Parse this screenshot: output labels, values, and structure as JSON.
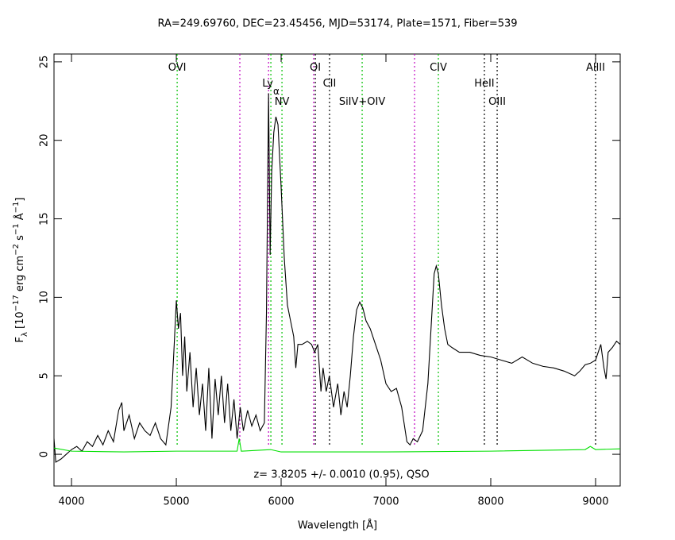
{
  "chart_data": {
    "type": "line",
    "title": "RA=249.69760, DEC=23.45456, MJD=53174, Plate=1571, Fiber=539",
    "xlabel": "Wavelength [Å]",
    "ylabel": [
      "F",
      "λ",
      " [10",
      "−17",
      " erg cm",
      "−2",
      " s",
      "−1",
      " Å",
      "−1",
      "]"
    ],
    "annotation": "z= 3.8205 +/- 0.0010 (0.95), QSO",
    "xlim": [
      3833,
      9235
    ],
    "ylim": [
      -2.02,
      25.5
    ],
    "xticks": [
      4000,
      5000,
      6000,
      7000,
      8000,
      9000
    ],
    "yticks": [
      0,
      5,
      10,
      15,
      20,
      25
    ],
    "series": [
      {
        "color": "#000000",
        "x": [
          3833,
          3850,
          3900,
          3950,
          4000,
          4050,
          4100,
          4150,
          4200,
          4250,
          4300,
          4350,
          4400,
          4450,
          4480,
          4500,
          4550,
          4600,
          4650,
          4700,
          4750,
          4800,
          4850,
          4900,
          4950,
          4980,
          5000,
          5020,
          5040,
          5060,
          5080,
          5100,
          5130,
          5160,
          5190,
          5220,
          5250,
          5280,
          5310,
          5340,
          5370,
          5400,
          5430,
          5460,
          5490,
          5520,
          5550,
          5580,
          5610,
          5640,
          5680,
          5720,
          5760,
          5800,
          5840,
          5860,
          5880,
          5895,
          5910,
          5930,
          5950,
          5970,
          6000,
          6030,
          6060,
          6090,
          6120,
          6140,
          6160,
          6200,
          6250,
          6290,
          6320,
          6350,
          6380,
          6400,
          6430,
          6460,
          6500,
          6540,
          6570,
          6600,
          6630,
          6660,
          6690,
          6720,
          6750,
          6780,
          6810,
          6850,
          6900,
          6950,
          7000,
          7050,
          7100,
          7150,
          7200,
          7230,
          7260,
          7300,
          7350,
          7400,
          7430,
          7460,
          7480,
          7500,
          7530,
          7560,
          7590,
          7630,
          7700,
          7800,
          7900,
          8000,
          8100,
          8200,
          8300,
          8400,
          8500,
          8600,
          8700,
          8800,
          8850,
          8900,
          8950,
          9000,
          9050,
          9080,
          9100,
          9120,
          9160,
          9200,
          9235
        ],
        "values": [
          1.0,
          -0.5,
          -0.3,
          0,
          0.3,
          0.5,
          0.2,
          0.8,
          0.5,
          1.2,
          0.6,
          1.5,
          0.8,
          2.8,
          3.3,
          1.5,
          2.5,
          1.0,
          2.0,
          1.5,
          1.2,
          2.0,
          1.0,
          0.6,
          3.0,
          7.0,
          9.8,
          8.0,
          9.0,
          5.0,
          7.5,
          4.0,
          6.5,
          3.0,
          5.5,
          2.5,
          4.5,
          1.5,
          5.5,
          1.0,
          4.8,
          2.5,
          5.0,
          2.0,
          4.5,
          1.5,
          3.5,
          1.0,
          3.0,
          1.5,
          2.8,
          1.8,
          2.5,
          1.5,
          2.0,
          9.0,
          23.0,
          12.7,
          18,
          20.5,
          21.5,
          21.0,
          17,
          12.5,
          9.5,
          8.5,
          7.5,
          5.5,
          7.0,
          7.0,
          7.2,
          7.0,
          6.5,
          7.0,
          4.0,
          5.5,
          4.0,
          5.0,
          3.0,
          4.5,
          2.5,
          4.0,
          3.0,
          5.0,
          7.5,
          9.2,
          9.7,
          9.3,
          8.5,
          8.0,
          7.0,
          6.0,
          4.5,
          4.0,
          4.2,
          3.0,
          0.8,
          0.6,
          1.0,
          0.8,
          1.5,
          4.5,
          8.0,
          11.5,
          12.0,
          11.5,
          9.5,
          8.0,
          7.0,
          6.8,
          6.5,
          6.5,
          6.3,
          6.2,
          6.0,
          5.8,
          6.2,
          5.8,
          5.6,
          5.5,
          5.3,
          5.0,
          5.3,
          5.7,
          5.8,
          6.0,
          7.0,
          5.5,
          4.8,
          6.5,
          6.8,
          7.2,
          7.0
        ]
      },
      {
        "color": "#00e000",
        "x": [
          3833,
          4000,
          4500,
          5000,
          5580,
          5600,
          5620,
          5900,
          6000,
          7000,
          8000,
          8900,
          8950,
          9000,
          9235
        ],
        "values": [
          0.4,
          0.2,
          0.15,
          0.2,
          0.2,
          1.0,
          0.2,
          0.3,
          0.15,
          0.15,
          0.2,
          0.3,
          0.5,
          0.3,
          0.35
        ]
      }
    ],
    "lines": [
      {
        "x": 5008,
        "color": "#00c000",
        "label": "OVI"
      },
      {
        "x": 5606,
        "color": "#c000c0"
      },
      {
        "x": 5880,
        "color": "#c000c0"
      },
      {
        "x": 5902,
        "color": "#00c000",
        "label": "Ly",
        "label_sub": "α"
      },
      {
        "x": 6008,
        "color": "#00c000",
        "label": "NV"
      },
      {
        "x": 6310,
        "color": "#c000c0"
      },
      {
        "x": 6326,
        "color": "#000000",
        "label": "OI"
      },
      {
        "x": 6462,
        "color": "#000000",
        "label": "CII"
      },
      {
        "x": 6773,
        "color": "#00c000",
        "label": "SiIV+OIV"
      },
      {
        "x": 7273,
        "color": "#c000c0"
      },
      {
        "x": 7500,
        "color": "#00c000",
        "label": "CIV"
      },
      {
        "x": 7939,
        "color": "#000000",
        "label": "HeII"
      },
      {
        "x": 8061,
        "color": "#000000",
        "label": "OIII"
      },
      {
        "x": 9000,
        "color": "#000000",
        "label": "AlIII"
      }
    ]
  }
}
